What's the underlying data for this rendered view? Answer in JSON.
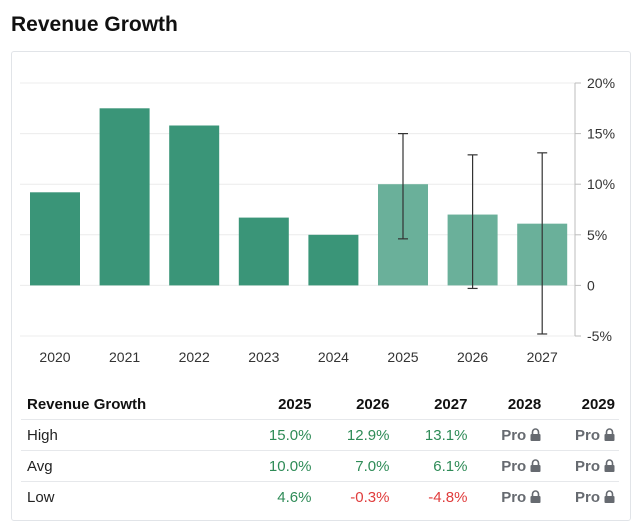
{
  "title": "Revenue Growth",
  "colors": {
    "actual": "#3a9578",
    "estimate": "#6ab09a",
    "error_bar": "#333333",
    "positive": "#2e8b57",
    "negative": "#e03c3c"
  },
  "chart_data": {
    "type": "bar",
    "categories": [
      "2020",
      "2021",
      "2022",
      "2023",
      "2024",
      "2025",
      "2026",
      "2027"
    ],
    "values": [
      9.2,
      17.5,
      15.8,
      6.7,
      5.0,
      10.0,
      7.0,
      6.1
    ],
    "estimate_from_index": 5,
    "error_bars": [
      null,
      null,
      null,
      null,
      null,
      [
        4.6,
        15.0
      ],
      [
        -0.3,
        12.9
      ],
      [
        -4.8,
        13.1
      ]
    ],
    "yticks": [
      "20%",
      "15%",
      "10%",
      "5%",
      "0",
      "-5%"
    ],
    "ytick_values": [
      20,
      15,
      10,
      5,
      0,
      -5
    ],
    "ylim": [
      -5,
      20
    ],
    "grid": true,
    "xlabel": "",
    "ylabel": ""
  },
  "table": {
    "header": [
      "Revenue Growth",
      "2025",
      "2026",
      "2027",
      "2028",
      "2029"
    ],
    "rows": [
      {
        "label": "High",
        "cells": [
          "15.0%",
          "12.9%",
          "13.1%",
          "Pro",
          "Pro"
        ],
        "signs": [
          "pos",
          "pos",
          "pos",
          "pro",
          "pro"
        ]
      },
      {
        "label": "Avg",
        "cells": [
          "10.0%",
          "7.0%",
          "6.1%",
          "Pro",
          "Pro"
        ],
        "signs": [
          "pos",
          "pos",
          "pos",
          "pro",
          "pro"
        ]
      },
      {
        "label": "Low",
        "cells": [
          "4.6%",
          "-0.3%",
          "-4.8%",
          "Pro",
          "Pro"
        ],
        "signs": [
          "pos",
          "neg",
          "neg",
          "pro",
          "pro"
        ]
      }
    ],
    "locked_icon": "lock-icon"
  }
}
